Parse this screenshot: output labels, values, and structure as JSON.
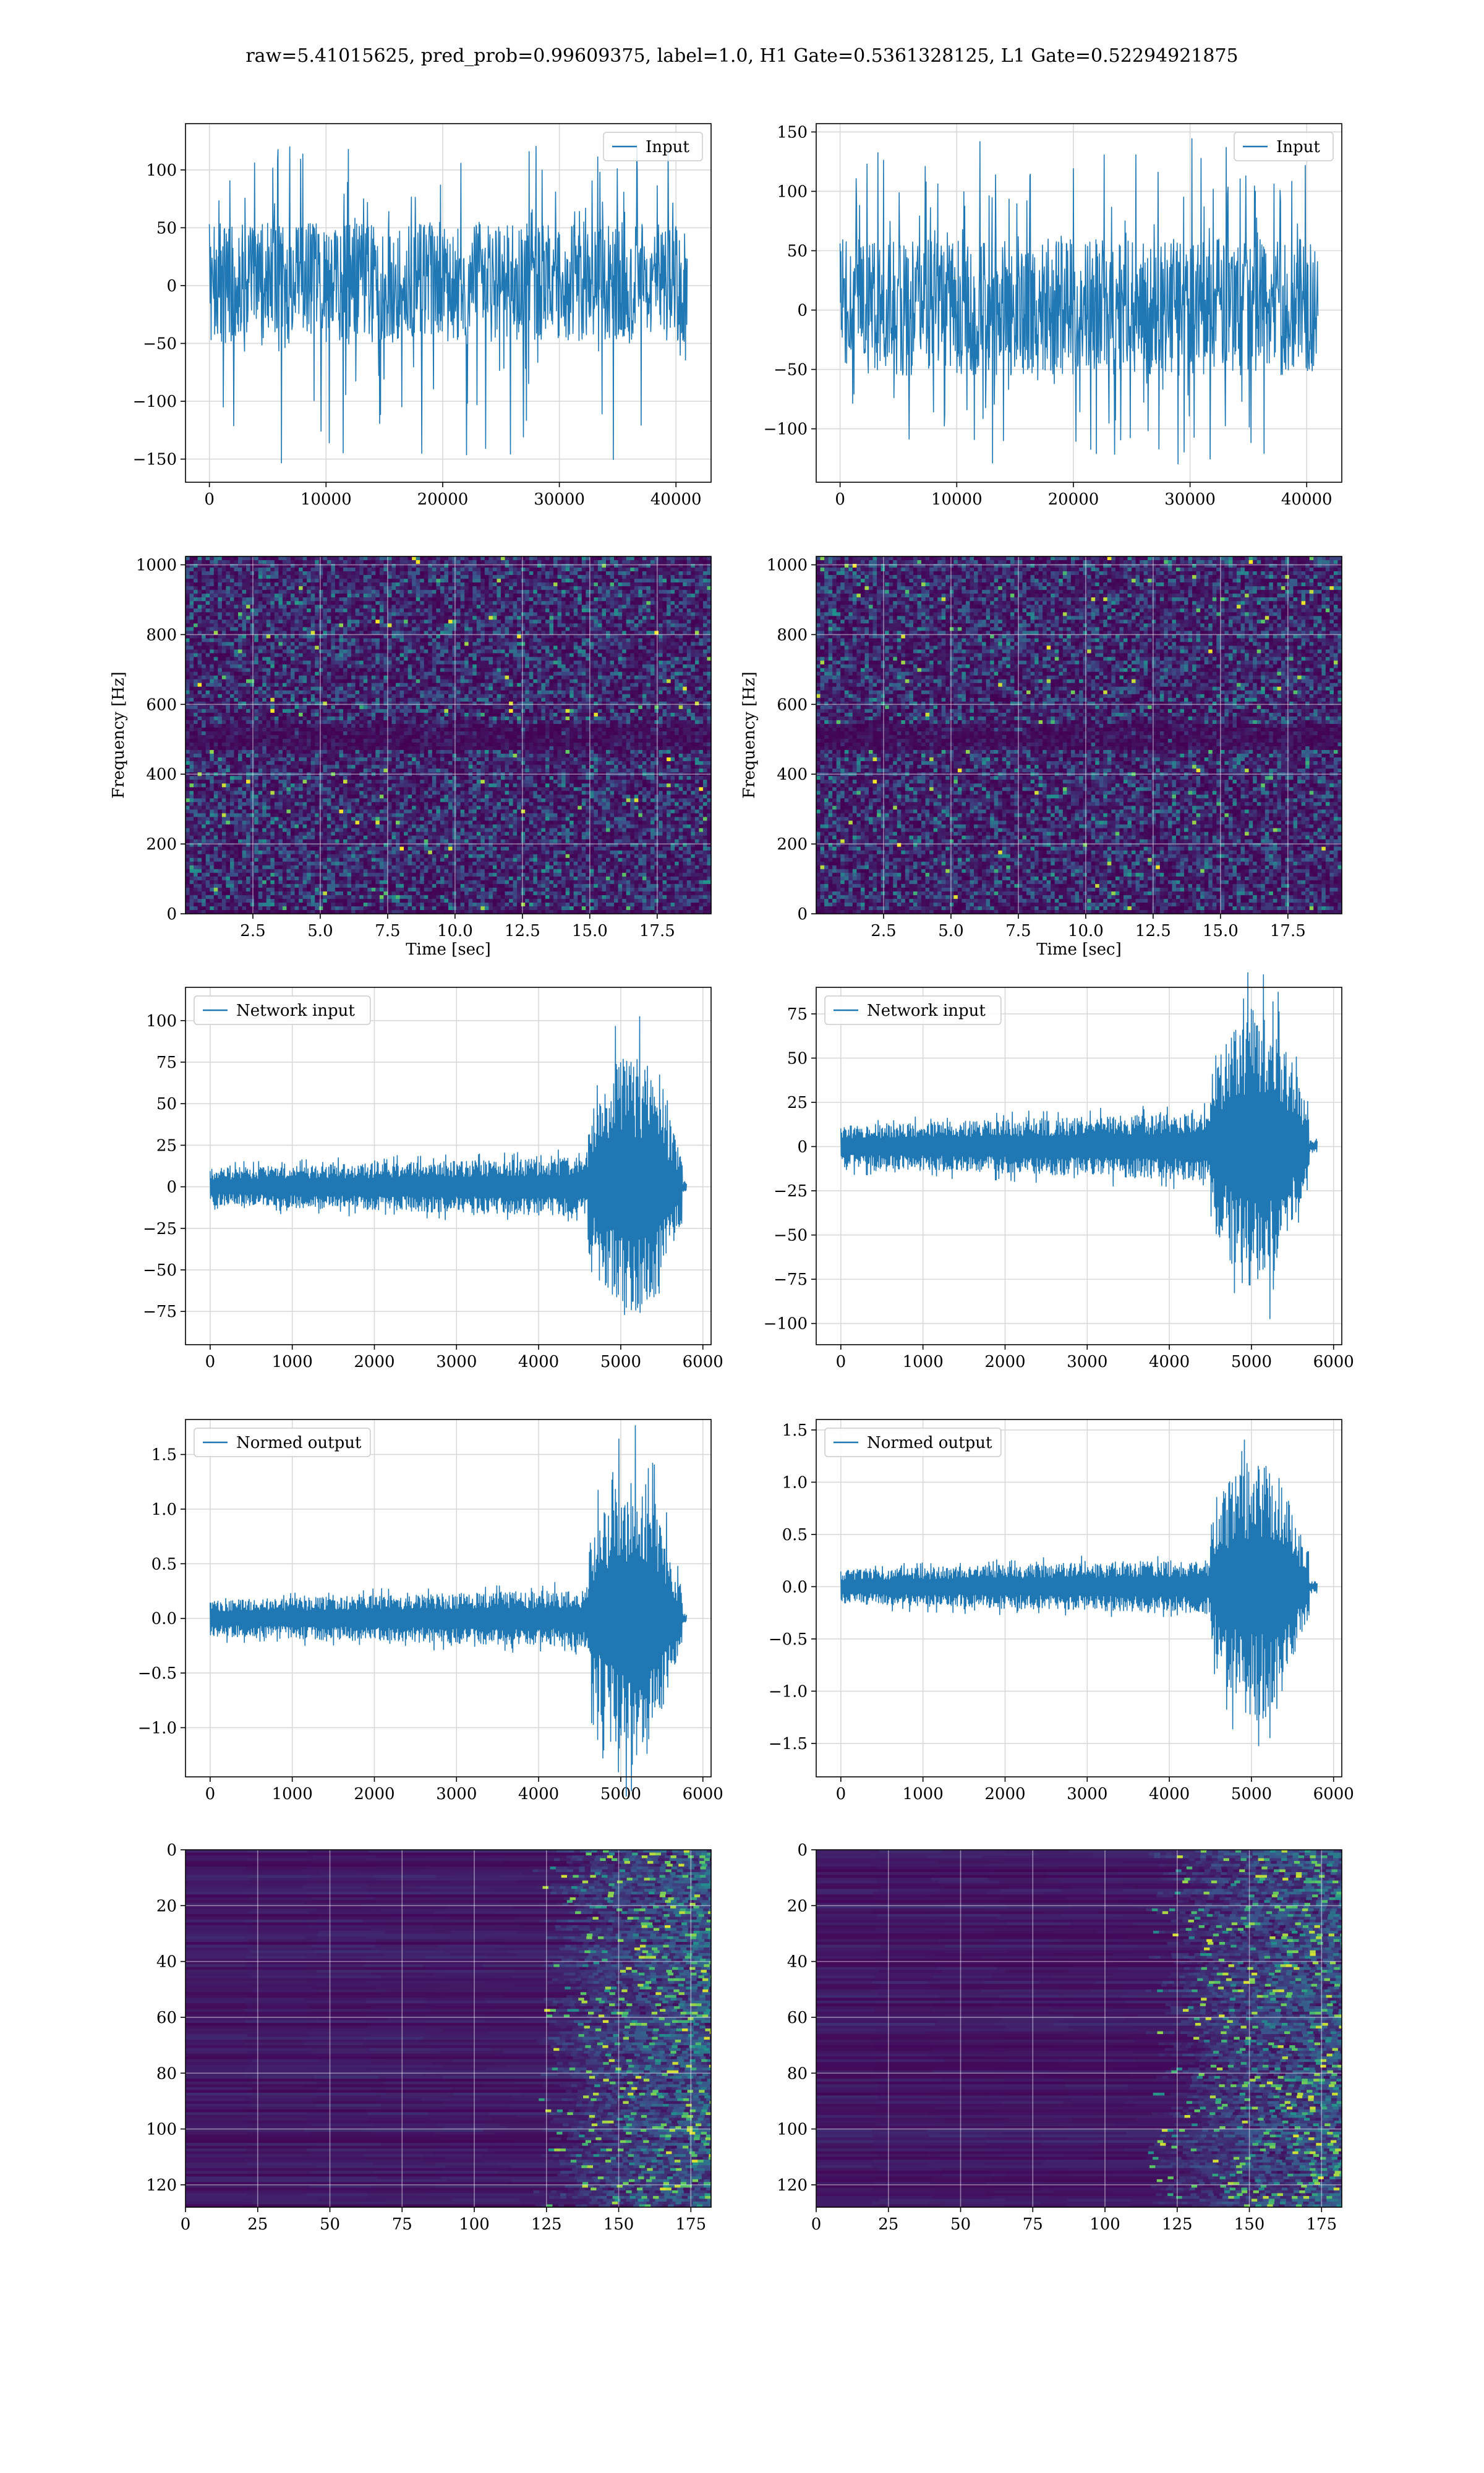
{
  "figure_title": "raw=5.41015625, pred_prob=0.99609375, label=1.0, H1 Gate=0.5361328125, L1 Gate=0.52294921875",
  "colors": {
    "line": "#1f77b4",
    "grid": "#d9d9d9",
    "viridis_dark": "#440154",
    "viridis_mid": "#3b528b",
    "viridis_teal": "#21918c",
    "viridis_green": "#5ec962",
    "viridis_yellow": "#fde725"
  },
  "chart_data": [
    {
      "id": "h1-input",
      "type": "line",
      "title": "",
      "xlabel": "",
      "ylabel": "",
      "xlim": [
        -2048,
        43008
      ],
      "ylim": [
        -170,
        140
      ],
      "xticks": [
        0,
        10000,
        20000,
        30000,
        40000
      ],
      "yticks": [
        -150,
        -100,
        -50,
        0,
        50,
        100
      ],
      "grid": true,
      "legend": "top-right",
      "series": [
        {
          "name": "Input",
          "envelope": {
            "x": [
              0,
              40960
            ],
            "band": [
              -50,
              55
            ],
            "spike_max": 122,
            "spike_min": -155
          }
        }
      ]
    },
    {
      "id": "l1-input",
      "type": "line",
      "title": "",
      "xlabel": "",
      "ylabel": "",
      "xlim": [
        -2048,
        43008
      ],
      "ylim": [
        -145,
        157
      ],
      "xticks": [
        0,
        10000,
        20000,
        30000,
        40000
      ],
      "yticks": [
        -100,
        -50,
        0,
        50,
        100,
        150
      ],
      "grid": true,
      "legend": "top-right",
      "series": [
        {
          "name": "Input",
          "envelope": {
            "x": [
              0,
              40960
            ],
            "band": [
              -55,
              60
            ],
            "spike_max": 145,
            "spike_min": -130
          }
        }
      ]
    },
    {
      "id": "h1-spectrogram",
      "type": "heatmap",
      "title": "",
      "xlabel": "Time [sec]",
      "ylabel": "Frequency [Hz]",
      "xlim": [
        0,
        19.5
      ],
      "ylim": [
        0,
        1024
      ],
      "xticks": [
        2.5,
        5.0,
        7.5,
        10.0,
        12.5,
        15.0,
        17.5
      ],
      "yticks": [
        0,
        200,
        400,
        600,
        800,
        1000
      ],
      "grid": true,
      "colormap": "viridis"
    },
    {
      "id": "l1-spectrogram",
      "type": "heatmap",
      "title": "",
      "xlabel": "Time [sec]",
      "ylabel": "Frequency [Hz]",
      "xlim": [
        0,
        19.5
      ],
      "ylim": [
        0,
        1024
      ],
      "xticks": [
        2.5,
        5.0,
        7.5,
        10.0,
        12.5,
        15.0,
        17.5
      ],
      "yticks": [
        0,
        200,
        400,
        600,
        800,
        1000
      ],
      "grid": true,
      "colormap": "viridis"
    },
    {
      "id": "h1-network-input",
      "type": "line",
      "title": "",
      "xlabel": "",
      "ylabel": "",
      "xlim": [
        -300,
        6100
      ],
      "ylim": [
        -95,
        120
      ],
      "xticks": [
        0,
        1000,
        2000,
        3000,
        4000,
        5000,
        6000
      ],
      "yticks": [
        -75,
        -50,
        -25,
        0,
        25,
        50,
        75,
        100
      ],
      "grid": true,
      "legend": "top-left",
      "series": [
        {
          "name": "Network input",
          "envelope": {
            "x": [
              0,
              5800
            ],
            "chirp_start": 4600,
            "chirp_end": 5750,
            "base_amp": 15,
            "peak_amp": 95
          }
        }
      ]
    },
    {
      "id": "l1-network-input",
      "type": "line",
      "title": "",
      "xlabel": "",
      "ylabel": "",
      "xlim": [
        -300,
        6100
      ],
      "ylim": [
        -112,
        90
      ],
      "xticks": [
        0,
        1000,
        2000,
        3000,
        4000,
        5000,
        6000
      ],
      "yticks": [
        -100,
        -75,
        -50,
        -25,
        0,
        25,
        50,
        75
      ],
      "grid": true,
      "legend": "top-left",
      "series": [
        {
          "name": "Network input",
          "envelope": {
            "x": [
              0,
              5800
            ],
            "chirp_start": 4500,
            "chirp_end": 5700,
            "base_amp": 16,
            "peak_amp": 95
          }
        }
      ]
    },
    {
      "id": "h1-normed-output",
      "type": "line",
      "title": "",
      "xlabel": "",
      "ylabel": "",
      "xlim": [
        -300,
        6100
      ],
      "ylim": [
        -1.45,
        1.82
      ],
      "xticks": [
        0,
        1000,
        2000,
        3000,
        4000,
        5000,
        6000
      ],
      "yticks": [
        -1.0,
        -0.5,
        0.0,
        0.5,
        1.0,
        1.5
      ],
      "grid": true,
      "legend": "top-left",
      "series": [
        {
          "name": "Normed output",
          "envelope": {
            "x": [
              0,
              5800
            ],
            "chirp_start": 4600,
            "chirp_end": 5750,
            "base_amp": 0.22,
            "peak_amp": 1.6
          }
        }
      ]
    },
    {
      "id": "l1-normed-output",
      "type": "line",
      "title": "",
      "xlabel": "",
      "ylabel": "",
      "xlim": [
        -300,
        6100
      ],
      "ylim": [
        -1.82,
        1.6
      ],
      "xticks": [
        0,
        1000,
        2000,
        3000,
        4000,
        5000,
        6000
      ],
      "yticks": [
        -1.5,
        -1.0,
        -0.5,
        0.0,
        0.5,
        1.0,
        1.5
      ],
      "grid": true,
      "legend": "top-left",
      "series": [
        {
          "name": "Normed output",
          "envelope": {
            "x": [
              0,
              5800
            ],
            "chirp_start": 4500,
            "chirp_end": 5700,
            "base_amp": 0.22,
            "peak_amp": 1.5
          }
        }
      ]
    },
    {
      "id": "h1-feature-map",
      "type": "heatmap",
      "title": "",
      "xlabel": "",
      "ylabel": "",
      "xlim": [
        0,
        182
      ],
      "ylim": [
        128,
        0
      ],
      "xticks": [
        0,
        25,
        50,
        75,
        100,
        125,
        150,
        175
      ],
      "yticks": [
        0,
        20,
        40,
        60,
        80,
        100,
        120
      ],
      "grid": true,
      "colormap": "viridis",
      "activity_onset": 128
    },
    {
      "id": "l1-feature-map",
      "type": "heatmap",
      "title": "",
      "xlabel": "",
      "ylabel": "",
      "xlim": [
        0,
        182
      ],
      "ylim": [
        128,
        0
      ],
      "xticks": [
        0,
        25,
        50,
        75,
        100,
        125,
        150,
        175
      ],
      "yticks": [
        0,
        20,
        40,
        60,
        80,
        100,
        120
      ],
      "grid": true,
      "colormap": "viridis",
      "activity_onset": 122
    }
  ]
}
